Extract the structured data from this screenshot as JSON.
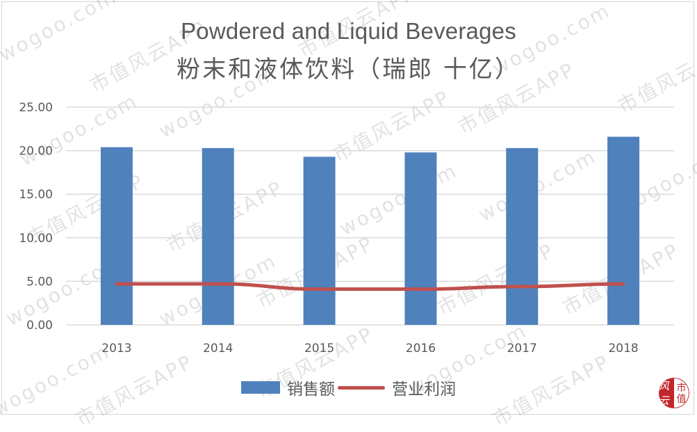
{
  "chart_data": {
    "type": "bar",
    "title": "Powdered and Liquid Beverages",
    "subtitle": "粉末和液体饮料（瑞郎 十亿）",
    "xlabel": "",
    "ylabel": "",
    "categories": [
      "2013",
      "2014",
      "2015",
      "2016",
      "2017",
      "2018"
    ],
    "series": [
      {
        "name": "销售额",
        "type": "bar",
        "color": "#4f81bd",
        "values": [
          20.4,
          20.3,
          19.3,
          19.8,
          20.3,
          21.6
        ]
      },
      {
        "name": "营业利润",
        "type": "line",
        "color": "#c0504d",
        "values": [
          4.7,
          4.7,
          4.1,
          4.1,
          4.4,
          4.7
        ]
      }
    ],
    "ylim": [
      0,
      25
    ],
    "yticks": [
      "0.00",
      "5.00",
      "10.00",
      "15.00",
      "20.00",
      "25.00"
    ],
    "grid": true,
    "legend_position": "bottom"
  },
  "watermark": {
    "app_text": "市值风云APP",
    "site_text": "wogoo.com",
    "logo_left": "风云",
    "logo_right_top": "市",
    "logo_right_bottom": "值"
  }
}
